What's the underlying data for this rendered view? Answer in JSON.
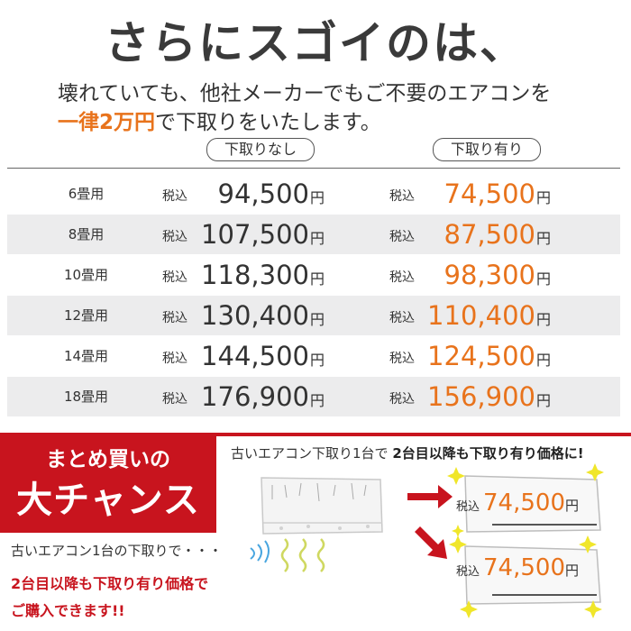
{
  "header": {
    "title": "さらにスゴイのは、",
    "subtitle_line1": "壊れていても、他社メーカーでもご不要のエアコンを",
    "subtitle_highlight": "一律2万円",
    "subtitle_line2_rest": "で下取りをいたします。"
  },
  "columns": {
    "no_tradein": "下取りなし",
    "with_tradein": "下取り有り"
  },
  "tax_label": "税込",
  "yen_label": "円",
  "rows": [
    {
      "size": "6畳用",
      "no_tradein": "94,500",
      "with_tradein": "74,500"
    },
    {
      "size": "8畳用",
      "no_tradein": "107,500",
      "with_tradein": "87,500"
    },
    {
      "size": "10畳用",
      "no_tradein": "118,300",
      "with_tradein": "98,300"
    },
    {
      "size": "12畳用",
      "no_tradein": "130,400",
      "with_tradein": "110,400"
    },
    {
      "size": "14畳用",
      "no_tradein": "144,500",
      "with_tradein": "124,500"
    },
    {
      "size": "18畳用",
      "no_tradein": "176,900",
      "with_tradein": "156,900"
    }
  ],
  "promo": {
    "badge_line1": "まとめ買いの",
    "badge_line2": "大チャンス",
    "ribbon_prefix": "古いエアコン下取り1台で",
    "ribbon_bold": "2台目以降も下取り有り価格に!",
    "left_caption1": "古いエアコン1台の下取りで・・・",
    "left_caption2": "2台目以降も下取り有り価格で",
    "left_caption3": "ご購入できます!!",
    "unit1_price": "74,500",
    "unit2_price": "74,500"
  },
  "colors": {
    "accent_orange": "#e8731c",
    "promo_red": "#c8141e",
    "row_shade": "#ececed"
  }
}
